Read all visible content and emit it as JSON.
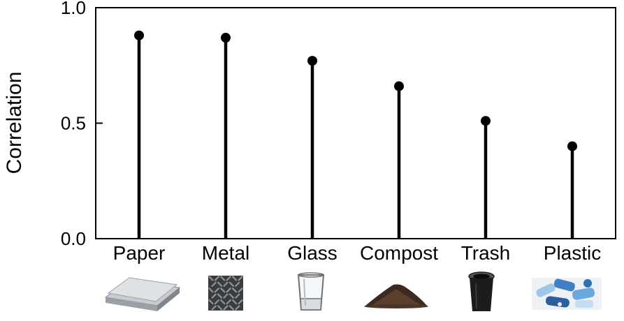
{
  "chart_data": {
    "type": "lollipop",
    "categories": [
      "Paper",
      "Metal",
      "Glass",
      "Compost",
      "Trash",
      "Plastic"
    ],
    "values": [
      0.88,
      0.87,
      0.77,
      0.66,
      0.51,
      0.4
    ],
    "title": "",
    "xlabel": "",
    "ylabel": "Correlation",
    "ylim": [
      0.0,
      1.0
    ],
    "yticks": [
      "0.0",
      "0.5",
      "1.0"
    ],
    "grid": false,
    "legend": "none",
    "icons": [
      "paper-stack-icon",
      "metal-plate-icon",
      "drinking-glass-icon",
      "compost-pile-icon",
      "trash-bin-icon",
      "plastic-bottles-icon"
    ],
    "colors": {
      "stem": "#000000",
      "marker": "#000000",
      "axis": "#000000"
    }
  }
}
